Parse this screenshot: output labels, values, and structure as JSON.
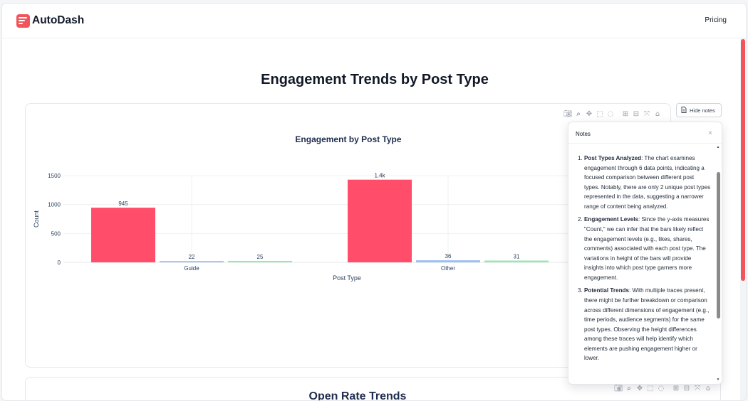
{
  "app": {
    "brand": "AutoDash",
    "nav_link": "Pricing",
    "accent_color": "#f2545b"
  },
  "page": {
    "title": "Engagement Trends by Post Type"
  },
  "toolbar": {
    "hide_notes_label": "Hide notes",
    "modebar_icons": [
      "camera-icon",
      "zoom-icon",
      "pan-icon",
      "box-select-icon",
      "lasso-icon",
      "zoom-in-icon",
      "zoom-out-icon",
      "autoscale-icon",
      "reset-axes-icon"
    ]
  },
  "chart_data": {
    "type": "bar",
    "title": "Engagement by Post Type",
    "xlabel": "Post Type",
    "ylabel": "Count",
    "categories": [
      "Guide",
      "Other"
    ],
    "ylim": [
      0,
      1500
    ],
    "yticks": [
      "0",
      "500",
      "1000",
      "1500"
    ],
    "grid": true,
    "series": [
      {
        "values": [
          945,
          1430
        ],
        "labels": [
          "945",
          "1.4k"
        ],
        "color": "#ff4d6a"
      },
      {
        "values": [
          22,
          36
        ],
        "labels": [
          "22",
          "36"
        ],
        "color": "#9cbff2"
      },
      {
        "values": [
          25,
          31
        ],
        "labels": [
          "25",
          "31"
        ],
        "color": "#9ae8ad"
      }
    ]
  },
  "notes": {
    "title": "Notes",
    "close": "×",
    "items": [
      {
        "heading": "Post Types Analyzed",
        "text": ": The chart examines engagement through 6 data points, indicating a focused comparison between different post types. Notably, there are only 2 unique post types represented in the data, suggesting a narrower range of content being analyzed."
      },
      {
        "heading": "Engagement Levels",
        "text": ": Since the y-axis measures \"Count,\" we can infer that the bars likely reflect the engagement levels (e.g., likes, shares, comments) associated with each post type. The variations in height of the bars will provide insights into which post type garners more engagement."
      },
      {
        "heading": "Potential Trends",
        "text": ": With multiple traces present, there might be further breakdown or comparison across different dimensions of engagement (e.g., time periods, audience segments) for the same post types. Observing the height differences among these traces will help identify which elements are pushing engagement higher or lower."
      }
    ]
  },
  "second_card": {
    "title": "Open Rate Trends"
  }
}
